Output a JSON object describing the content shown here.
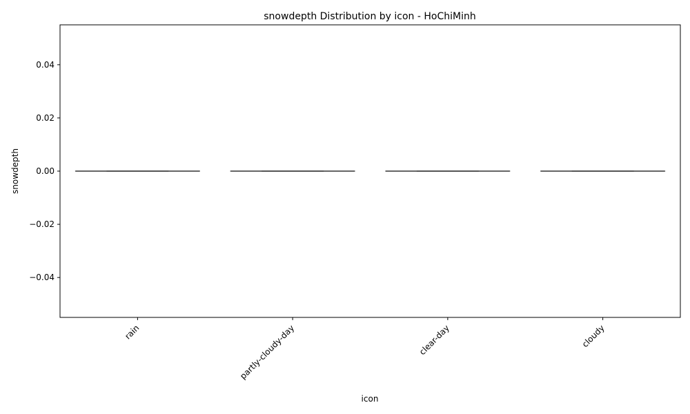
{
  "chart_data": {
    "type": "box",
    "title": "snowdepth Distribution by icon - HoChiMinh",
    "xlabel": "icon",
    "ylabel": "snowdepth",
    "categories": [
      "rain",
      "partly-cloudy-day",
      "clear-day",
      "cloudy"
    ],
    "boxes": [
      {
        "category": "rain",
        "min": 0,
        "q1": 0,
        "median": 0,
        "q3": 0,
        "max": 0
      },
      {
        "category": "partly-cloudy-day",
        "min": 0,
        "q1": 0,
        "median": 0,
        "q3": 0,
        "max": 0
      },
      {
        "category": "clear-day",
        "min": 0,
        "q1": 0,
        "median": 0,
        "q3": 0,
        "max": 0
      },
      {
        "category": "cloudy",
        "min": 0,
        "q1": 0,
        "median": 0,
        "q3": 0,
        "max": 0
      }
    ],
    "ylim": [
      -0.055,
      0.055
    ],
    "yticks": [
      -0.04,
      -0.02,
      0.0,
      0.02,
      0.04
    ],
    "ytick_labels": [
      "−0.04",
      "−0.02",
      "0.00",
      "0.02",
      "0.04"
    ],
    "grid": false,
    "legend": "none",
    "colors": {
      "box_line": "#3f3f3f",
      "axes": "#000000"
    }
  }
}
